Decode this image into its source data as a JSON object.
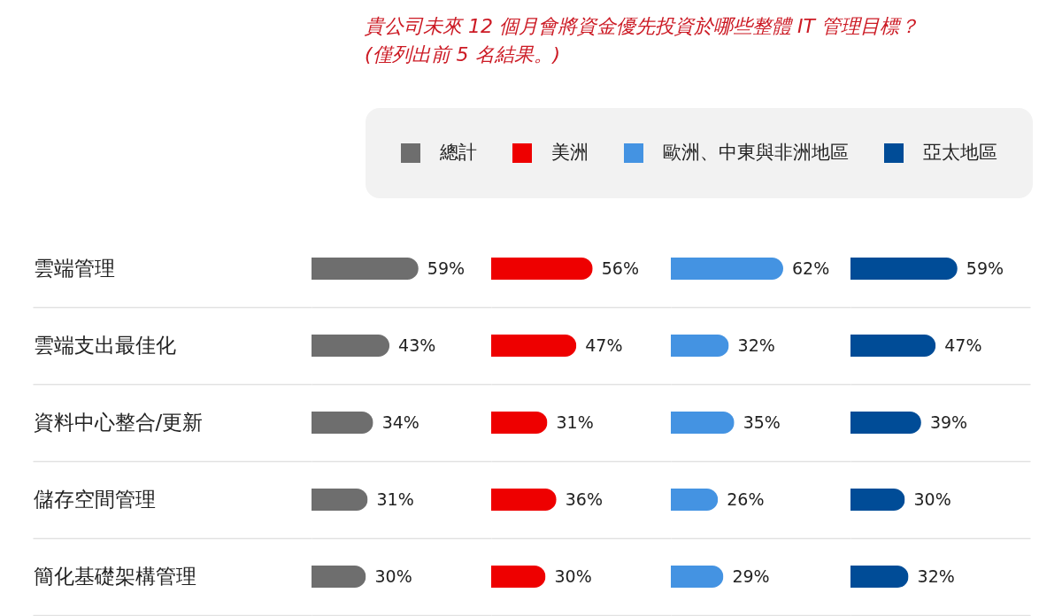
{
  "chart_data": [
    {
      "type": "bar",
      "orientation": "horizontal",
      "title": "貴公司未來 12 個月會將資金優先投資於哪些整體 IT 管理目標？",
      "subtitle": "(僅列出前 5 名結果。)",
      "categories": [
        "雲端管理",
        "雲端支出最佳化",
        "資料中心整合/更新",
        "儲存空間管理",
        "簡化基礎架構管理"
      ],
      "series": [
        {
          "name": "總計",
          "color": "#6e6e6e",
          "values": [
            59,
            43,
            34,
            31,
            30
          ],
          "value_labels": [
            "59%",
            "43%",
            "34%",
            "31%",
            "30%"
          ]
        }
      ],
      "legend": "top right",
      "grid": "y",
      "tick_labels": "y"
    },
    {
      "type": "bar",
      "orientation": "horizontal",
      "categories": [
        "雲端管理",
        "雲端支出最佳化",
        "資料中心整合/更新",
        "儲存空間管理",
        "簡化基礎架構管理"
      ],
      "series": [
        {
          "name": "美洲",
          "color": "#ee0000",
          "values": [
            56,
            47,
            31,
            36,
            30
          ],
          "value_labels": [
            "56%",
            "47%",
            "31%",
            "36%",
            "30%"
          ]
        }
      ],
      "legend": "top right",
      "grid": "y",
      "tick_labels": false
    },
    {
      "type": "bar",
      "orientation": "horizontal",
      "categories": [
        "雲端管理",
        "雲端支出最佳化",
        "資料中心整合/更新",
        "儲存空間管理",
        "簡化基礎架構管理"
      ],
      "series": [
        {
          "name": "歐洲、中東與非洲地區",
          "color": "#4493e2",
          "values": [
            62,
            32,
            35,
            26,
            29
          ],
          "value_labels": [
            "62%",
            "32%",
            "35%",
            "26%",
            "29%"
          ]
        }
      ],
      "legend": "top right",
      "grid": "y",
      "tick_labels": false
    },
    {
      "type": "bar",
      "orientation": "horizontal",
      "categories": [
        "雲端管理",
        "雲端支出最佳化",
        "資料中心整合/更新",
        "儲存空間管理",
        "簡化基礎架構管理"
      ],
      "series": [
        {
          "name": "亞太地區",
          "color": "#004c97",
          "values": [
            59,
            47,
            39,
            30,
            32
          ],
          "value_labels": [
            "59%",
            "47%",
            "39%",
            "30%",
            "32%"
          ]
        }
      ],
      "legend": "top right",
      "grid": "y",
      "tick_labels": false
    }
  ]
}
